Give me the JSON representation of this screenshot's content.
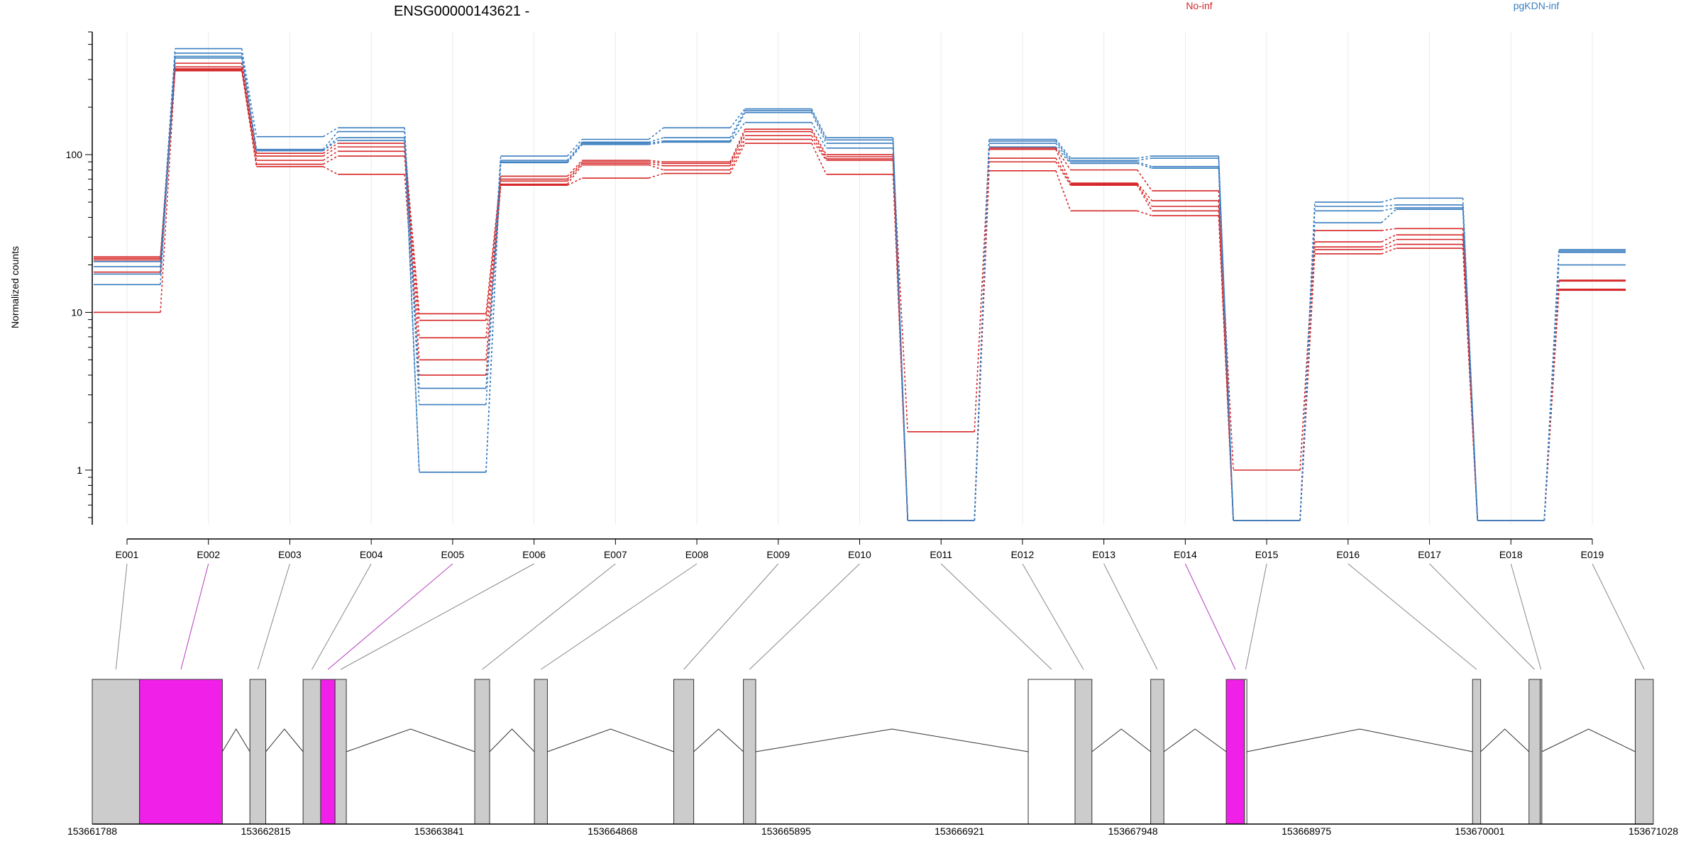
{
  "chart_data": {
    "type": "line",
    "title": "ENSG00000143621 -",
    "ylabel": "Normalized counts",
    "xlabel": "",
    "y_scale": "log",
    "ylim": [
      0.45,
      600
    ],
    "y_ticks": [
      {
        "value": 1,
        "label": "1"
      },
      {
        "value": 10,
        "label": "10"
      },
      {
        "value": 100,
        "label": "100"
      }
    ],
    "categories": [
      "E001",
      "E002",
      "E003",
      "E004",
      "E005",
      "E006",
      "E007",
      "E008",
      "E009",
      "E010",
      "E011",
      "E012",
      "E013",
      "E014",
      "E015",
      "E016",
      "E017",
      "E018",
      "E019"
    ],
    "groups": [
      {
        "label": "No-inf",
        "color": "#d62728"
      },
      {
        "label": "pgKDN-inf",
        "color": "#3a7ebf"
      }
    ],
    "series": [
      {
        "group": 0,
        "values": [
          22.5,
          380,
          102,
          118,
          9.8,
          73,
          92,
          90,
          145,
          100,
          1.75,
          110,
          80,
          59,
          1.0,
          33,
          34,
          0.48,
          16
        ]
      },
      {
        "group": 0,
        "values": [
          21.5,
          360,
          98,
          112,
          8.9,
          70,
          90,
          88,
          140,
          97,
          0.48,
          108,
          66,
          51,
          0.48,
          28,
          31,
          0.48,
          15.8
        ]
      },
      {
        "group": 0,
        "values": [
          18,
          350,
          92,
          105,
          6.9,
          68,
          88,
          85,
          132,
          94,
          0.48,
          95,
          65,
          47,
          0.48,
          26,
          29,
          0.48,
          14
        ]
      },
      {
        "group": 0,
        "values": [
          10,
          345,
          87,
          98,
          5.0,
          65,
          86,
          80,
          125,
          92,
          0.48,
          90,
          64,
          44,
          0.48,
          25,
          27,
          0.48,
          14
        ]
      },
      {
        "group": 0,
        "values": [
          22,
          340,
          84,
          75,
          4.0,
          64,
          71,
          76,
          118,
          75,
          0.48,
          79,
          44,
          41,
          0.48,
          23.5,
          25.5,
          0.48,
          13.8
        ]
      },
      {
        "group": 1,
        "values": [
          21,
          470,
          130,
          148,
          3.3,
          98,
          125,
          148,
          195,
          128,
          0.48,
          125,
          95,
          98,
          0.48,
          50,
          53,
          0.48,
          25
        ]
      },
      {
        "group": 1,
        "values": [
          19.5,
          440,
          108,
          140,
          2.6,
          92,
          120,
          128,
          190,
          124,
          0.48,
          122,
          92,
          95,
          0.48,
          47,
          48,
          0.48,
          24.5
        ]
      },
      {
        "group": 1,
        "values": [
          17.5,
          420,
          106,
          128,
          0.97,
          90,
          118,
          122,
          185,
          118,
          0.48,
          118,
          90,
          84,
          0.48,
          44,
          46,
          0.48,
          24
        ]
      },
      {
        "group": 1,
        "values": [
          15,
          410,
          106,
          123,
          0.97,
          89,
          116,
          120,
          160,
          110,
          0.48,
          112,
          88,
          82,
          0.48,
          37,
          45,
          0.48,
          20
        ]
      }
    ],
    "genome_track": {
      "positions": [
        {
          "value": 153661788,
          "label": "153661788"
        },
        {
          "value": 153662815,
          "label": "153662815"
        },
        {
          "value": 153663841,
          "label": "153663841"
        },
        {
          "value": 153664868,
          "label": "153664868"
        },
        {
          "value": 153665895,
          "label": "153665895"
        },
        {
          "value": 153666921,
          "label": "153666921"
        },
        {
          "value": 153667948,
          "label": "153667948"
        },
        {
          "value": 153668975,
          "label": "153668975"
        },
        {
          "value": 153670001,
          "label": "153670001"
        },
        {
          "value": 153671028,
          "label": "153671028"
        }
      ],
      "exons": [
        {
          "id": "E001",
          "start": 153661788,
          "end": 153662068,
          "highlight": false
        },
        {
          "id": "E002",
          "start": 153662068,
          "end": 153662558,
          "highlight": true
        },
        {
          "id": "E003",
          "start": 153662721,
          "end": 153662815,
          "highlight": false
        },
        {
          "id": "E004",
          "start": 153663036,
          "end": 153663140,
          "highlight": false
        },
        {
          "id": "E005",
          "start": 153663140,
          "end": 153663225,
          "highlight": true
        },
        {
          "id": "E006",
          "start": 153663225,
          "end": 153663292,
          "highlight": false
        },
        {
          "id": "E007",
          "start": 153664052,
          "end": 153664140,
          "highlight": false
        },
        {
          "id": "E008",
          "start": 153664405,
          "end": 153664482,
          "highlight": false
        },
        {
          "id": "E009",
          "start": 153665230,
          "end": 153665348,
          "highlight": false
        },
        {
          "id": "E010",
          "start": 153665642,
          "end": 153665715,
          "highlight": false
        },
        {
          "id": "E011",
          "start": 153667328,
          "end": 153667605,
          "highlight": false,
          "open": true
        },
        {
          "id": "E012",
          "start": 153667605,
          "end": 153667705,
          "highlight": false
        },
        {
          "id": "E013",
          "start": 153668053,
          "end": 153668131,
          "highlight": false
        },
        {
          "id": "E014",
          "start": 153668500,
          "end": 153668608,
          "highlight": true
        },
        {
          "id": "E015",
          "start": 153668608,
          "end": 153668622,
          "highlight": false,
          "open": true
        },
        {
          "id": "E016",
          "start": 153669958,
          "end": 153670006,
          "highlight": false
        },
        {
          "id": "E017",
          "start": 153670292,
          "end": 153670358,
          "highlight": false
        },
        {
          "id": "E018",
          "start": 153670358,
          "end": 153670368,
          "highlight": false
        },
        {
          "id": "E019",
          "start": 153670921,
          "end": 153671028,
          "highlight": false
        }
      ]
    }
  },
  "colors": {
    "group_a": "#d62728",
    "group_b": "#3a7ebf",
    "highlight": "#f020e8",
    "exon_fill": "#cccccc",
    "grid": "#ebebeb"
  }
}
